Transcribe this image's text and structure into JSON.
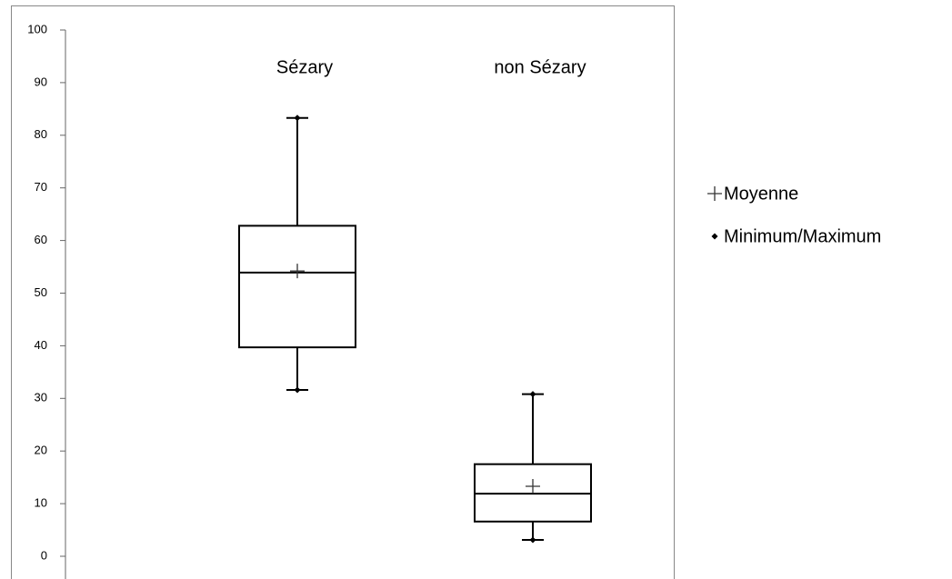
{
  "chart_data": {
    "type": "box",
    "categories": [
      "Sézary",
      "non Sézary"
    ],
    "boxes": [
      {
        "min": 31.6,
        "q1": 39.7,
        "median": 53.9,
        "q3": 62.8,
        "max": 83.3,
        "mean": 54.2
      },
      {
        "min": 3.1,
        "q1": 6.6,
        "median": 11.9,
        "q3": 17.5,
        "max": 30.8,
        "mean": 13.3
      }
    ],
    "legend": {
      "mean": "Moyenne",
      "minmax": "Minimum/Maximum"
    },
    "color": "#000000",
    "ylim": [
      0,
      100
    ],
    "yticks": [
      0,
      10,
      20,
      30,
      40,
      50,
      60,
      70,
      80,
      90,
      100
    ],
    "grid": false
  }
}
